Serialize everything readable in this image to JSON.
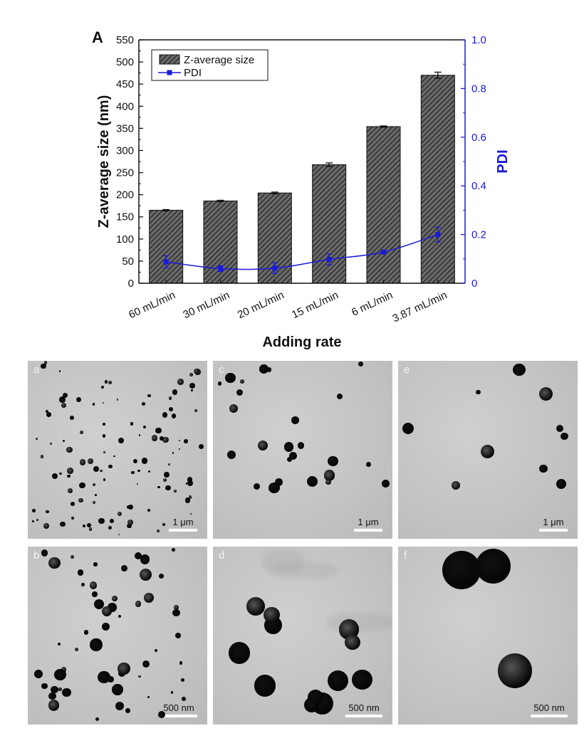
{
  "panels": {
    "a": "A",
    "b": "B"
  },
  "chart_data": {
    "type": "bar",
    "categories": [
      "60 mL/min",
      "30 mL/min",
      "20 mL/min",
      "15 mL/min",
      "6 mL/min",
      "3.87 mL/min"
    ],
    "xlabel": "Adding rate",
    "ylabel": "Z-average size (nm)",
    "y2label": "PDI",
    "ylim": [
      0,
      550
    ],
    "y2lim": [
      0,
      1.0
    ],
    "yticks": [
      0,
      50,
      100,
      150,
      200,
      250,
      300,
      350,
      400,
      450,
      500,
      550
    ],
    "y2ticks": [
      "0",
      "0.2",
      "0.4",
      "0.6",
      "0.8",
      "1.0"
    ],
    "legend_position": "top-left",
    "bar_color": "#3a3a3a",
    "pdi_color": "#1a1ad9",
    "series": [
      {
        "name": "Z-average size",
        "axis": "left",
        "kind": "bar",
        "values": [
          165,
          186,
          204,
          268,
          354,
          470
        ],
        "errors": [
          1.5,
          1.5,
          2,
          4,
          1.5,
          7
        ]
      },
      {
        "name": "PDI",
        "axis": "right",
        "kind": "line",
        "values": [
          0.088,
          0.06,
          0.062,
          0.098,
          0.128,
          0.2
        ],
        "errors": [
          0.025,
          0.012,
          0.022,
          0.022,
          0.006,
          0.03
        ]
      }
    ]
  },
  "tem_images": [
    {
      "label": "a",
      "scalebar": "1 μm"
    },
    {
      "label": "c",
      "scalebar": "1 μm"
    },
    {
      "label": "e",
      "scalebar": "1 μm"
    },
    {
      "label": "b",
      "scalebar": "500 nm"
    },
    {
      "label": "d",
      "scalebar": "500 nm"
    },
    {
      "label": "f",
      "scalebar": "500 nm"
    }
  ]
}
